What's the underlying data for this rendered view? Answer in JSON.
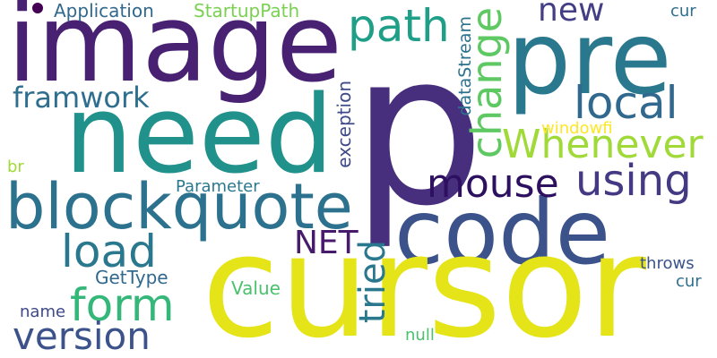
{
  "words": {
    "p": "p",
    "cursor": "cursor",
    "image": "image",
    "need": "need",
    "pre": "pre",
    "code": "code",
    "blockquote": "blockquote",
    "path": "path",
    "change": "change",
    "whenever": "Whenever",
    "local": "local",
    "using": "using",
    "mouse": "mouse",
    "new": "new",
    "framwork": "framwork",
    "load": "load",
    "form": "form",
    "version": "version",
    "net": "NET",
    "tried": "tried",
    "application": "Application",
    "startuppath": "StartupPath",
    "cur_top": "cur",
    "datastream": "dataStream",
    "exception": "exception",
    "windowfi": "windowfi",
    "br": "br",
    "parameter": "Parameter",
    "gettype": "GetType",
    "value": "Value",
    "name": "name",
    "throws": "throws",
    "cur_bottom": "cur",
    "null": "null"
  }
}
